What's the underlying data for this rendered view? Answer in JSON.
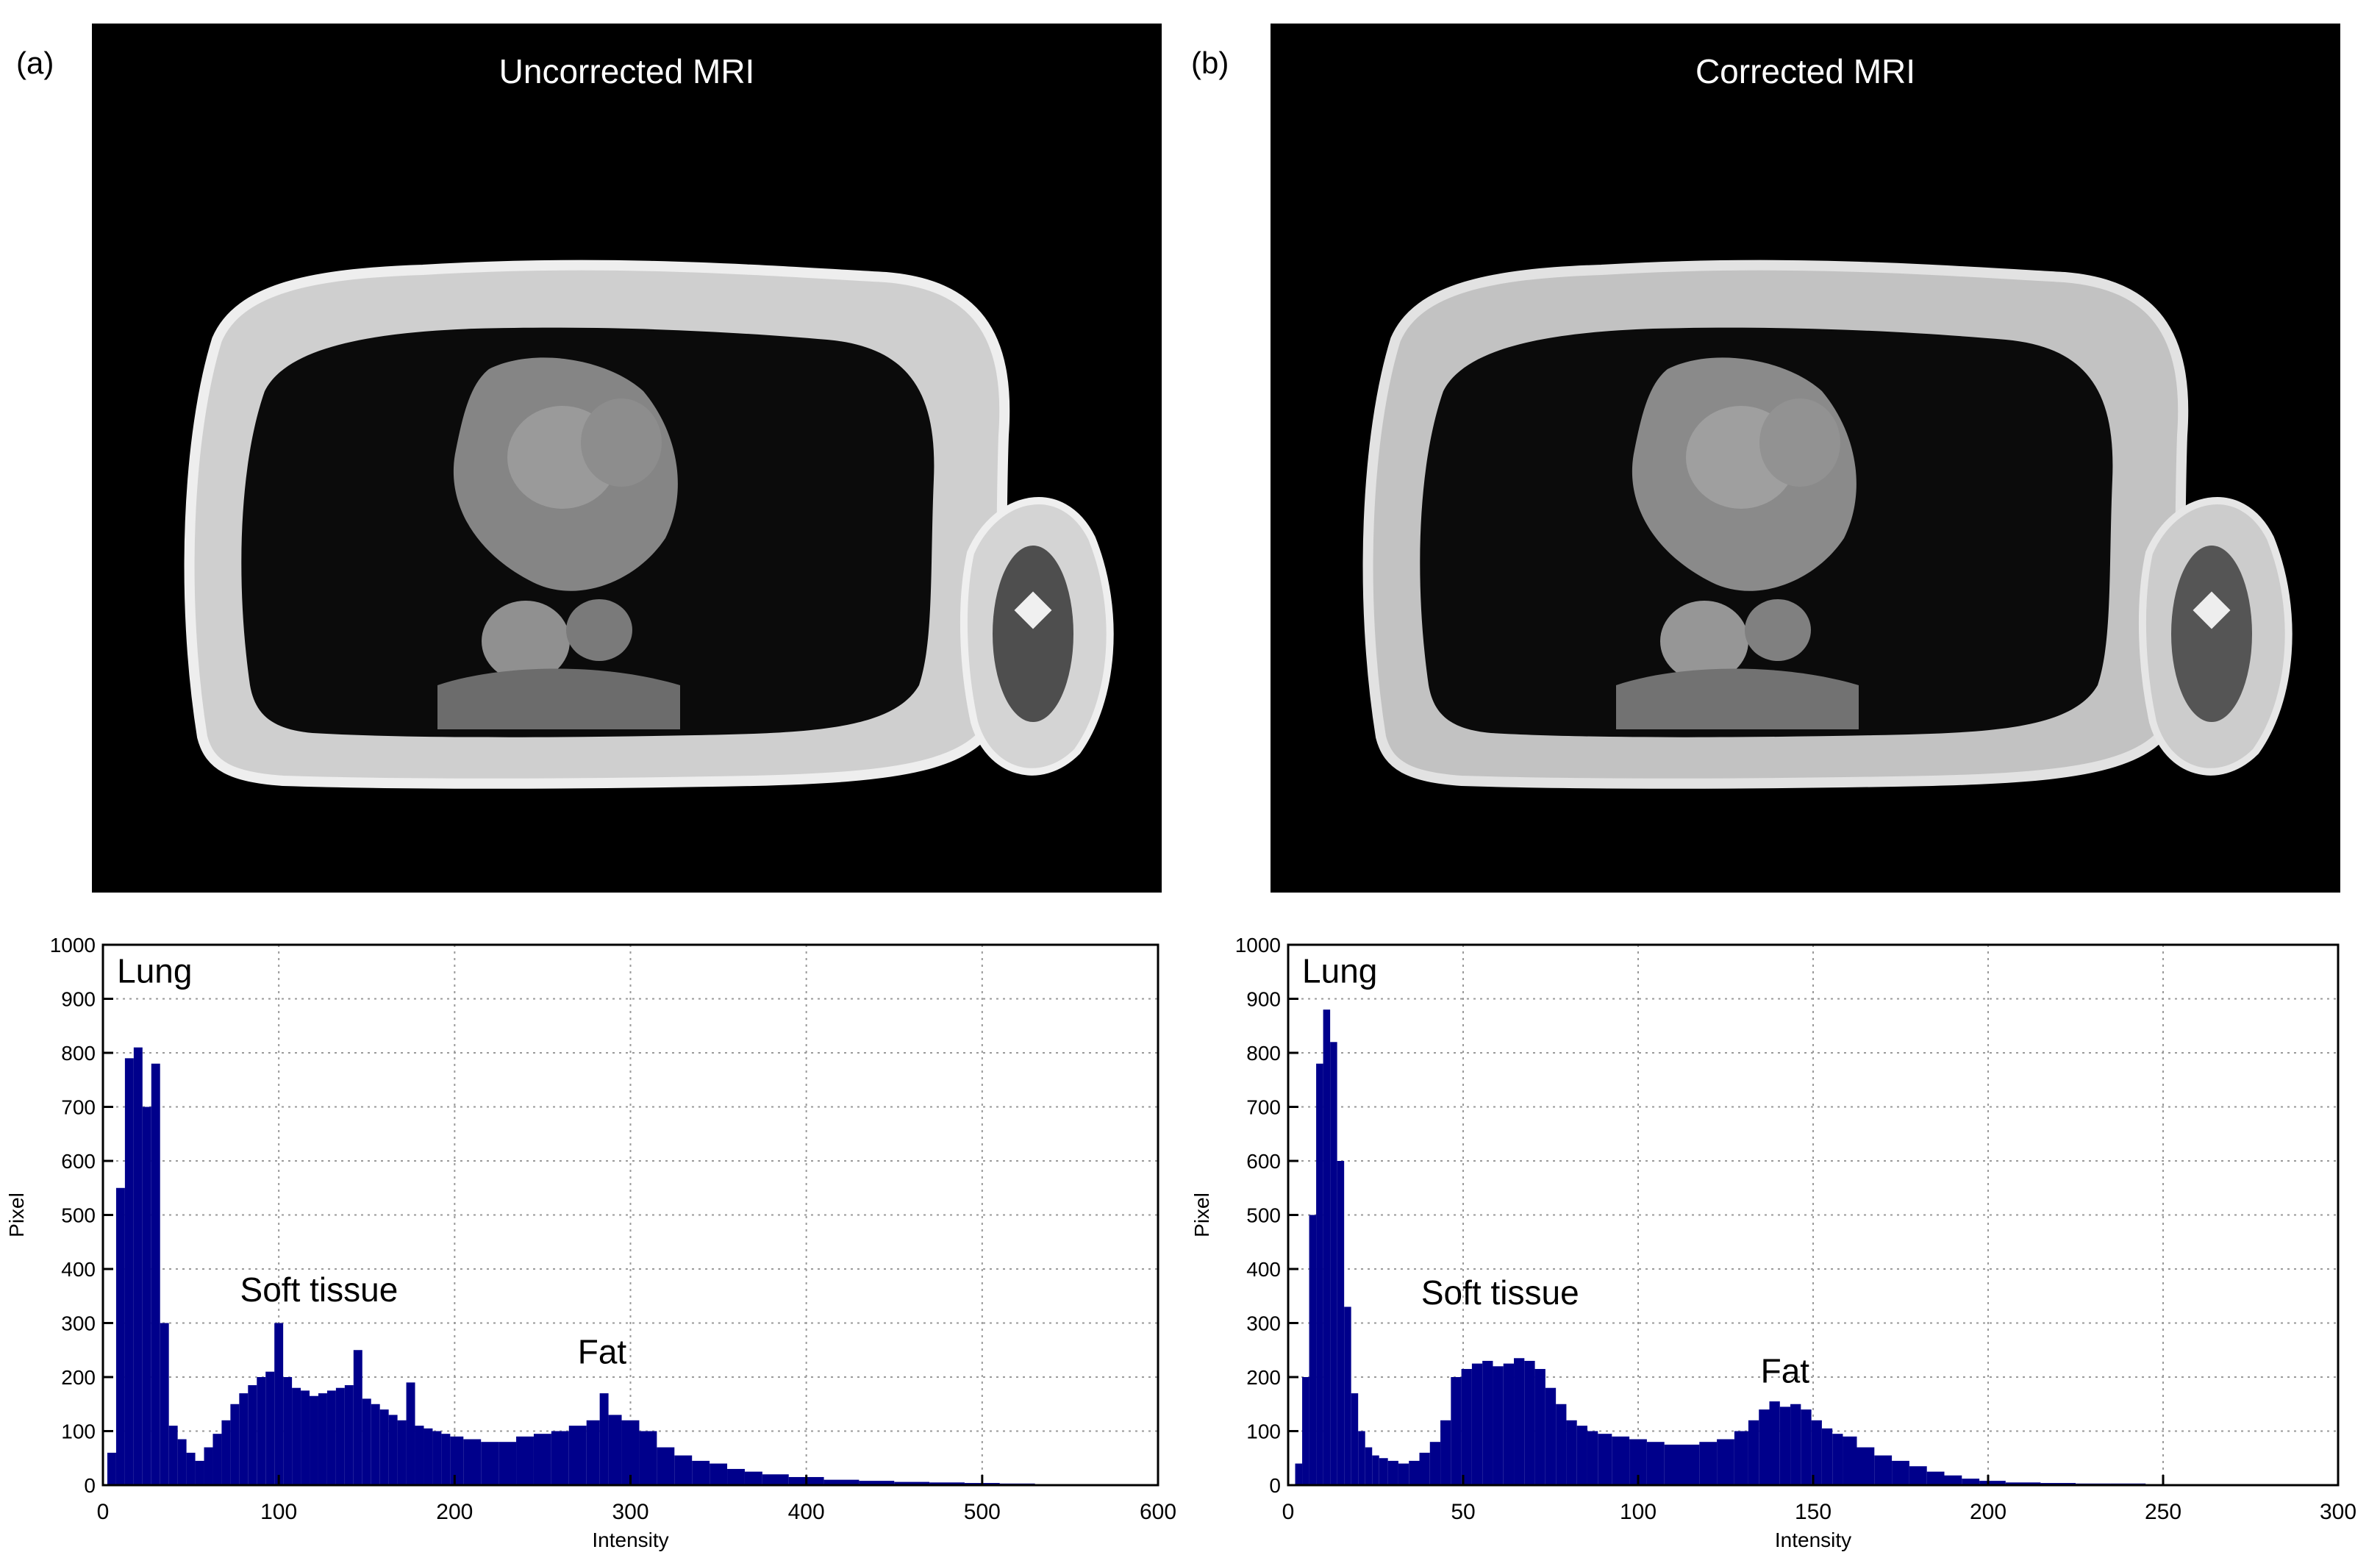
{
  "panels": [
    {
      "label": "(a)",
      "image_title": "Uncorrected MRI"
    },
    {
      "label": "(b)",
      "image_title": "Corrected MRI"
    }
  ],
  "colors": {
    "bar": "#00008b",
    "grid": "#9a9a9a",
    "image_bg": "#000000"
  },
  "chart_data": [
    {
      "type": "bar",
      "title": "",
      "xlabel": "Intensity",
      "ylabel": "Pixel",
      "xlim": [
        0,
        600
      ],
      "ylim": [
        0,
        1000
      ],
      "xticks": [
        0,
        100,
        200,
        300,
        400,
        500,
        600
      ],
      "yticks": [
        0,
        100,
        200,
        300,
        400,
        500,
        600,
        700,
        800,
        900,
        1000
      ],
      "grid": true,
      "annotations": [
        {
          "text": "Lung",
          "x": 8,
          "y": 930
        },
        {
          "text": "Soft tissue",
          "x": 78,
          "y": 340
        },
        {
          "text": "Fat",
          "x": 270,
          "y": 225
        }
      ],
      "x": [
        5,
        10,
        15,
        20,
        25,
        30,
        35,
        40,
        45,
        50,
        55,
        60,
        65,
        70,
        75,
        80,
        85,
        90,
        95,
        100,
        105,
        110,
        115,
        120,
        125,
        130,
        135,
        140,
        145,
        150,
        155,
        160,
        165,
        170,
        175,
        180,
        185,
        190,
        195,
        200,
        210,
        220,
        230,
        240,
        250,
        260,
        270,
        280,
        285,
        290,
        300,
        310,
        320,
        330,
        340,
        350,
        360,
        370,
        380,
        400,
        420,
        440,
        460,
        480,
        500,
        520,
        540,
        560,
        580
      ],
      "values": [
        60,
        550,
        790,
        810,
        700,
        780,
        300,
        110,
        85,
        60,
        45,
        70,
        95,
        120,
        150,
        170,
        185,
        200,
        210,
        300,
        200,
        180,
        175,
        165,
        170,
        175,
        180,
        185,
        250,
        160,
        150,
        140,
        130,
        120,
        190,
        110,
        105,
        100,
        95,
        90,
        85,
        80,
        80,
        90,
        95,
        100,
        110,
        120,
        170,
        130,
        120,
        100,
        70,
        55,
        45,
        40,
        30,
        25,
        20,
        15,
        10,
        8,
        6,
        5,
        4,
        3,
        2,
        1,
        1
      ]
    },
    {
      "type": "bar",
      "title": "",
      "xlabel": "Intensity",
      "ylabel": "Pixel",
      "xlim": [
        0,
        300
      ],
      "ylim": [
        0,
        1000
      ],
      "xticks": [
        0,
        50,
        100,
        150,
        200,
        250,
        300
      ],
      "yticks": [
        0,
        100,
        200,
        300,
        400,
        500,
        600,
        700,
        800,
        900,
        1000
      ],
      "grid": true,
      "annotations": [
        {
          "text": "Lung",
          "x": 4,
          "y": 930
        },
        {
          "text": "Soft tissue",
          "x": 38,
          "y": 335
        },
        {
          "text": "Fat",
          "x": 135,
          "y": 190
        }
      ],
      "x": [
        3,
        5,
        7,
        9,
        11,
        13,
        15,
        17,
        19,
        21,
        23,
        25,
        27,
        30,
        33,
        36,
        39,
        42,
        45,
        48,
        51,
        54,
        57,
        60,
        63,
        66,
        69,
        72,
        75,
        78,
        81,
        84,
        87,
        90,
        95,
        100,
        105,
        110,
        115,
        120,
        125,
        130,
        133,
        136,
        139,
        142,
        145,
        148,
        151,
        154,
        157,
        160,
        165,
        170,
        175,
        180,
        185,
        190,
        195,
        200,
        210,
        220,
        230,
        240,
        250,
        260,
        270
      ],
      "values": [
        40,
        200,
        500,
        780,
        880,
        820,
        600,
        330,
        170,
        100,
        70,
        55,
        50,
        45,
        40,
        45,
        60,
        80,
        120,
        200,
        215,
        225,
        230,
        220,
        225,
        235,
        230,
        215,
        180,
        150,
        120,
        110,
        100,
        95,
        90,
        85,
        80,
        75,
        75,
        80,
        85,
        100,
        120,
        140,
        155,
        145,
        150,
        140,
        120,
        105,
        95,
        90,
        70,
        55,
        45,
        35,
        25,
        18,
        12,
        8,
        5,
        4,
        3,
        3,
        2,
        2,
        1
      ]
    }
  ]
}
